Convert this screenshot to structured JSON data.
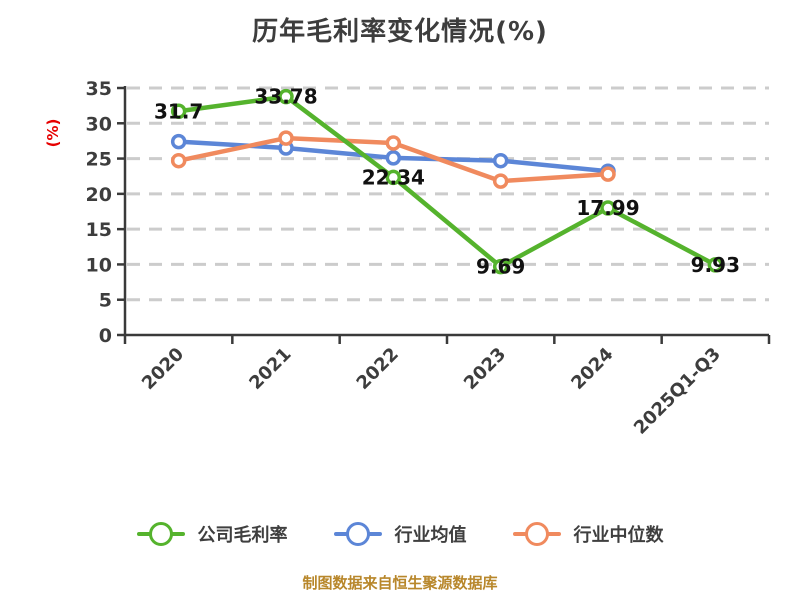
{
  "chart_data": {
    "type": "line",
    "title": "历年毛利率变化情况(%)",
    "categories": [
      "2020",
      "2021",
      "2022",
      "2023",
      "2024",
      "2025Q1-Q3"
    ],
    "series": [
      {
        "name": "公司毛利率",
        "color": "#55b32d",
        "values": [
          31.7,
          33.78,
          22.34,
          9.69,
          17.99,
          9.93
        ],
        "labeled": true,
        "values_estimated": false
      },
      {
        "name": "行业均值",
        "color": "#5c86d7",
        "values": [
          27.4,
          26.5,
          25.1,
          24.7,
          23.2,
          null
        ],
        "labeled": false,
        "values_estimated": true
      },
      {
        "name": "行业中位数",
        "color": "#f08a5e",
        "values": [
          24.7,
          27.9,
          27.2,
          21.8,
          22.8,
          null
        ],
        "labeled": false,
        "values_estimated": true
      }
    ],
    "xlabel": "",
    "ylabel": "(%)",
    "ylim": [
      0,
      35
    ],
    "ytick_step": 5,
    "grid": "horizontal-dashed",
    "legend_position": "bottom",
    "footer": "制图数据来自恒生聚源数据库"
  },
  "style_colors": {
    "gridline": "#cccccc",
    "axis": "#3a3a3a",
    "tick_text": "#3d3d3d",
    "data_label": "#111111",
    "ylabel_color": "#e60000",
    "footer_color": "#b8872b",
    "marker_fill": "#ffffff"
  }
}
